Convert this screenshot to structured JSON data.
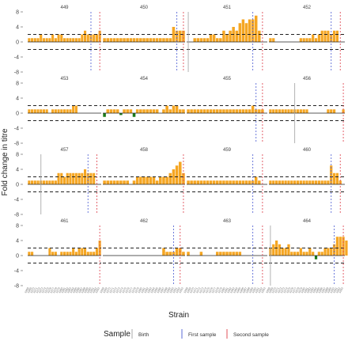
{
  "chart_data": {
    "type": "bar",
    "ylabel": "Fold change in titre",
    "xlabel": "Strain",
    "yticks": [
      -8,
      -4,
      0,
      4,
      8
    ],
    "ylim": [
      -8,
      8
    ],
    "reference_lines": [
      2,
      -2
    ],
    "grid": false,
    "colors": {
      "positive": "#f5a623",
      "negative": "#1a7a1a",
      "birth": "#aaaaaa",
      "first": "#5b6bd6",
      "second": "#e0505a"
    },
    "legend": {
      "title": "Sample",
      "position": "bottom",
      "entries": [
        {
          "label": "Birth",
          "color": "#aaaaaa"
        },
        {
          "label": "First sample",
          "color": "#5b6bd6"
        },
        {
          "label": "Second sample",
          "color": "#e0505a"
        }
      ]
    },
    "strains": [
      "1968",
      "1969",
      "1970",
      "1971",
      "1972",
      "1973",
      "1974",
      "1975",
      "1976",
      "1977",
      "1978",
      "1979",
      "1980",
      "1981",
      "1982",
      "1983",
      "1984",
      "1985",
      "1986",
      "1987",
      "1988",
      "1989",
      "1990",
      "1991",
      "1992",
      "1993"
    ],
    "panels": [
      {
        "title": "449",
        "values": [
          1,
          1,
          1,
          1,
          2,
          1,
          1,
          1,
          2,
          1,
          2,
          2,
          1,
          1,
          1,
          1,
          1,
          1,
          2,
          3,
          2,
          2,
          2,
          2,
          3
        ],
        "birth": null,
        "first": 21.5,
        "second": 24.5
      },
      {
        "title": "450",
        "values": [
          1,
          1,
          1,
          1,
          1,
          1,
          1,
          1,
          1,
          1,
          1,
          1,
          1,
          1,
          1,
          1,
          1,
          1,
          1,
          1,
          1,
          4,
          3,
          3,
          3
        ],
        "birth": null,
        "first": 22.5,
        "second": 24.5
      },
      {
        "title": "451",
        "values": [
          null,
          null,
          1,
          1,
          1,
          1,
          1,
          2,
          2,
          1,
          1,
          3,
          2,
          3,
          4,
          3,
          5,
          6,
          5,
          6,
          6,
          7,
          3
        ],
        "birth": 0.5,
        "first": 20.5,
        "second": 23.5
      },
      {
        "title": "452",
        "values": [
          1,
          1,
          null,
          null,
          null,
          null,
          null,
          null,
          null,
          null,
          1,
          1,
          1,
          1,
          2,
          1,
          2,
          3,
          3,
          3,
          2,
          3,
          3
        ],
        "birth": null,
        "first": 20.5,
        "second": 23.5
      },
      {
        "title": "453",
        "values": [
          1,
          1,
          1,
          1,
          1,
          1,
          1,
          null,
          1,
          1,
          1,
          1,
          1,
          1,
          1,
          2,
          2,
          null,
          null,
          null,
          null,
          null,
          null,
          null,
          null
        ],
        "birth": null,
        "first": null,
        "second": null
      },
      {
        "title": "454",
        "values": [
          -1,
          1,
          1,
          1,
          1,
          -0.5,
          1,
          1,
          1,
          -1,
          1,
          1,
          1,
          1,
          1,
          1,
          1,
          null,
          1,
          2,
          1,
          2,
          2,
          1,
          1
        ],
        "birth": null,
        "first": null,
        "second": null
      },
      {
        "title": "455",
        "values": [
          1,
          1,
          1,
          1,
          1,
          1,
          1,
          1,
          1,
          1,
          1,
          1,
          1,
          1,
          1,
          1,
          1,
          1,
          1,
          1,
          2,
          1,
          1,
          1
        ],
        "birth": null,
        "first": 21.5,
        "second": 23.5
      },
      {
        "title": "456",
        "values": [
          1,
          1,
          1,
          1,
          1,
          1,
          1,
          1,
          1,
          1,
          1,
          1,
          1,
          null,
          null,
          null,
          null,
          null,
          null,
          1,
          1,
          1,
          null,
          null,
          1
        ],
        "birth": 8.5,
        "first": null,
        "second": 24.5
      },
      {
        "title": "457",
        "values": [
          1,
          1,
          1,
          1,
          1,
          1,
          1,
          1,
          1,
          1,
          3,
          3,
          2,
          3,
          3,
          3,
          3,
          3,
          3,
          4,
          3,
          3,
          3
        ],
        "birth": 4.5,
        "first": 20.5,
        "second": 23.5
      },
      {
        "title": "458",
        "values": [
          1,
          1,
          1,
          1,
          1,
          1,
          1,
          1,
          null,
          1,
          2,
          2,
          2,
          2,
          2,
          2,
          1,
          2,
          2,
          2,
          3,
          4,
          5,
          6,
          3
        ],
        "birth": null,
        "first": null,
        "second": 24.5
      },
      {
        "title": "459",
        "values": [
          1,
          1,
          1,
          1,
          1,
          1,
          1,
          1,
          1,
          1,
          1,
          1,
          1,
          1,
          1,
          1,
          1,
          1,
          1,
          1,
          1,
          2,
          1
        ],
        "birth": null,
        "first": 20.5,
        "second": 23.5
      },
      {
        "title": "460",
        "values": [
          1,
          1,
          1,
          1,
          1,
          1,
          1,
          1,
          1,
          1,
          1,
          1,
          1,
          1,
          1,
          1,
          1,
          1,
          1,
          1,
          5,
          3,
          3,
          1
        ],
        "birth": null,
        "first": 20.5,
        "second": 23.5
      },
      {
        "title": "461",
        "values": [
          1,
          1,
          null,
          null,
          null,
          null,
          null,
          2,
          1,
          1,
          null,
          1,
          1,
          1,
          1,
          2,
          1,
          2,
          2,
          2,
          1,
          1,
          1,
          2,
          4
        ],
        "birth": null,
        "first": null,
        "second": 24.5
      },
      {
        "title": "462",
        "values": [
          null,
          null,
          null,
          null,
          null,
          null,
          null,
          null,
          null,
          null,
          null,
          null,
          null,
          null,
          null,
          null,
          null,
          null,
          2,
          1,
          1,
          1,
          2,
          2,
          1
        ],
        "birth": null,
        "first": 21.5,
        "second": 23.5
      },
      {
        "title": "463",
        "values": [
          1,
          null,
          null,
          null,
          1,
          null,
          null,
          null,
          null,
          1,
          1,
          1,
          1,
          1,
          1,
          1,
          1,
          null,
          null,
          null,
          null,
          null,
          null,
          null,
          null
        ],
        "birth": null,
        "first": 20.5,
        "second": 23.5
      },
      {
        "title": "464",
        "values": [
          2,
          3,
          4,
          3,
          2,
          2,
          3,
          1,
          1,
          1,
          2,
          1,
          1,
          2,
          1,
          -1,
          1,
          1,
          2,
          2,
          2,
          3,
          5,
          5,
          5,
          4
        ],
        "birth": 0.5,
        "first": 21.5,
        "second": 24.5
      }
    ]
  }
}
